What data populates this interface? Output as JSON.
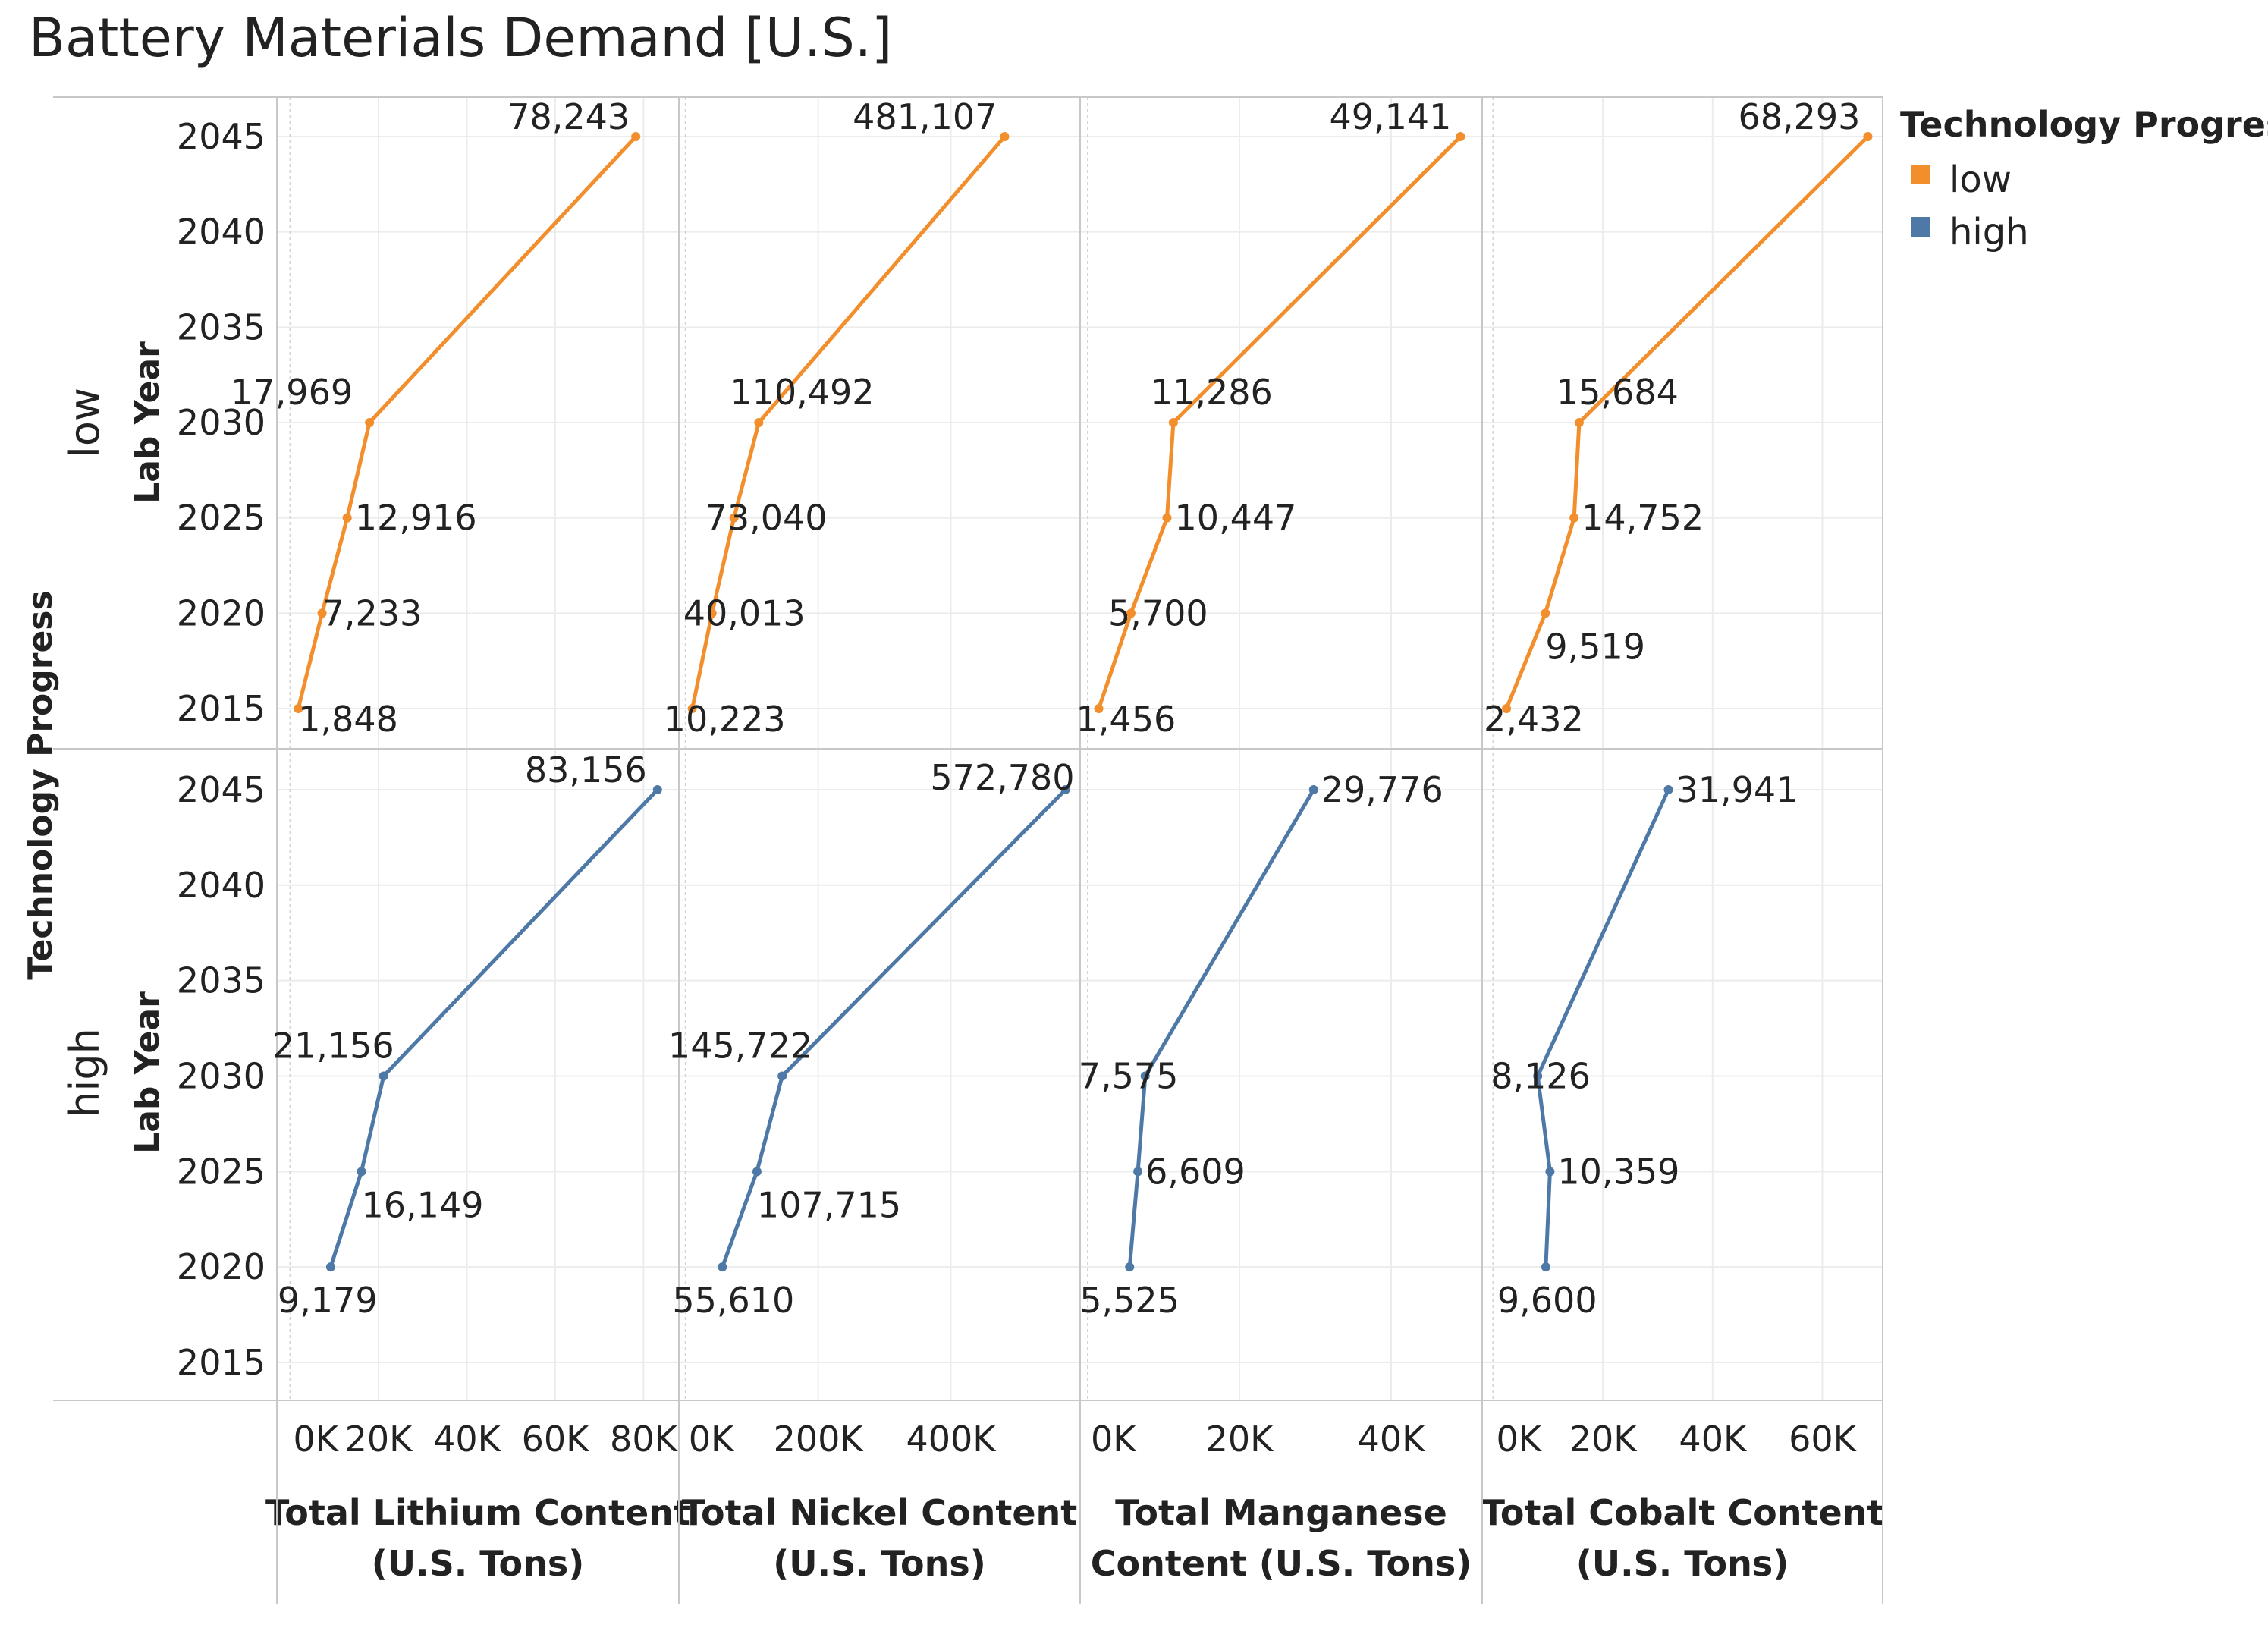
{
  "chart_data": {
    "type": "line",
    "title": "Battery Materials Demand [U.S.]",
    "row_dimension_label": "Technology Progress",
    "row_axis_label": "Lab Year",
    "y_ticks": [
      "2015",
      "2020",
      "2025",
      "2030",
      "2035",
      "2040",
      "2045"
    ],
    "ylim": [
      2015,
      2045
    ],
    "legend": {
      "title": "Technology Progress",
      "position": "top-right",
      "items": [
        {
          "label": "low",
          "color": "#f28e2b"
        },
        {
          "label": "high",
          "color": "#4e79a7"
        }
      ]
    },
    "rows": [
      {
        "label": "low",
        "color": "#f28e2b"
      },
      {
        "label": "high",
        "color": "#4e79a7"
      }
    ],
    "panels": [
      {
        "material": "Lithium",
        "xlabel_line1": "Total Lithium Content",
        "xlabel_line2": "(U.S. Tons)",
        "xlim": [
          -3000,
          88000
        ],
        "x_ticks": [
          {
            "value": 0,
            "label": "0K"
          },
          {
            "value": 20000,
            "label": "20K"
          },
          {
            "value": 40000,
            "label": "40K"
          },
          {
            "value": 60000,
            "label": "60K"
          },
          {
            "value": 80000,
            "label": "80K"
          }
        ],
        "series": {
          "low": {
            "years": [
              2015,
              2020,
              2025,
              2030,
              2045
            ],
            "values": [
              1848,
              7233,
              12916,
              17969,
              78243
            ],
            "labels": [
              "1,848",
              "7,233",
              "12,916",
              "17,969",
              "78,243"
            ]
          },
          "high": {
            "years": [
              2020,
              2025,
              2030,
              2045
            ],
            "values": [
              9179,
              16149,
              21156,
              83156
            ],
            "labels": [
              "9,179",
              "16,149",
              "21,156",
              "83,156"
            ]
          }
        }
      },
      {
        "material": "Nickel",
        "xlabel_line1": "Total Nickel Content",
        "xlabel_line2": "(U.S. Tons)",
        "xlim": [
          -10000,
          595000
        ],
        "x_ticks": [
          {
            "value": 0,
            "label": "0K"
          },
          {
            "value": 200000,
            "label": "200K"
          },
          {
            "value": 400000,
            "label": "400K"
          }
        ],
        "series": {
          "low": {
            "years": [
              2015,
              2020,
              2025,
              2030,
              2045
            ],
            "values": [
              10223,
              40013,
              73040,
              110492,
              481107
            ],
            "labels": [
              "10,223",
              "40,013",
              "73,040",
              "110,492",
              "481,107"
            ]
          },
          "high": {
            "years": [
              2020,
              2025,
              2030,
              2045
            ],
            "values": [
              55610,
              107715,
              145722,
              572780
            ],
            "labels": [
              "55,610",
              "107,715",
              "145,722",
              "572,780"
            ]
          }
        }
      },
      {
        "material": "Manganese",
        "xlabel_line1": "Total Manganese",
        "xlabel_line2": "Content (U.S. Tons)",
        "xlim": [
          -1000,
          52000
        ],
        "x_ticks": [
          {
            "value": 0,
            "label": "0K"
          },
          {
            "value": 20000,
            "label": "20K"
          },
          {
            "value": 40000,
            "label": "40K"
          }
        ],
        "series": {
          "low": {
            "years": [
              2015,
              2020,
              2025,
              2030,
              2045
            ],
            "values": [
              1456,
              5700,
              10447,
              11286,
              49141
            ],
            "labels": [
              "1,456",
              "5,700",
              "10,447",
              "11,286",
              "49,141"
            ]
          },
          "high": {
            "years": [
              2020,
              2025,
              2030,
              2045
            ],
            "values": [
              5525,
              6609,
              7575,
              29776
            ],
            "labels": [
              "5,525",
              "6,609",
              "7,575",
              "29,776"
            ]
          }
        }
      },
      {
        "material": "Cobalt",
        "xlabel_line1": "Total Cobalt Content",
        "xlabel_line2": "(U.S. Tons)",
        "xlim": [
          -2000,
          71000
        ],
        "x_ticks": [
          {
            "value": 0,
            "label": "0K"
          },
          {
            "value": 20000,
            "label": "20K"
          },
          {
            "value": 40000,
            "label": "40K"
          },
          {
            "value": 60000,
            "label": "60K"
          }
        ],
        "series": {
          "low": {
            "years": [
              2015,
              2020,
              2025,
              2030,
              2045
            ],
            "values": [
              2432,
              9519,
              14752,
              15684,
              68293
            ],
            "labels": [
              "2,432",
              "9,519",
              "14,752",
              "15,684",
              "68,293"
            ]
          },
          "high": {
            "years": [
              2020,
              2025,
              2030,
              2045
            ],
            "values": [
              9600,
              10359,
              8126,
              31941
            ],
            "labels": [
              "9,600",
              "10,359",
              "8,126",
              "31,941"
            ]
          }
        }
      }
    ]
  }
}
